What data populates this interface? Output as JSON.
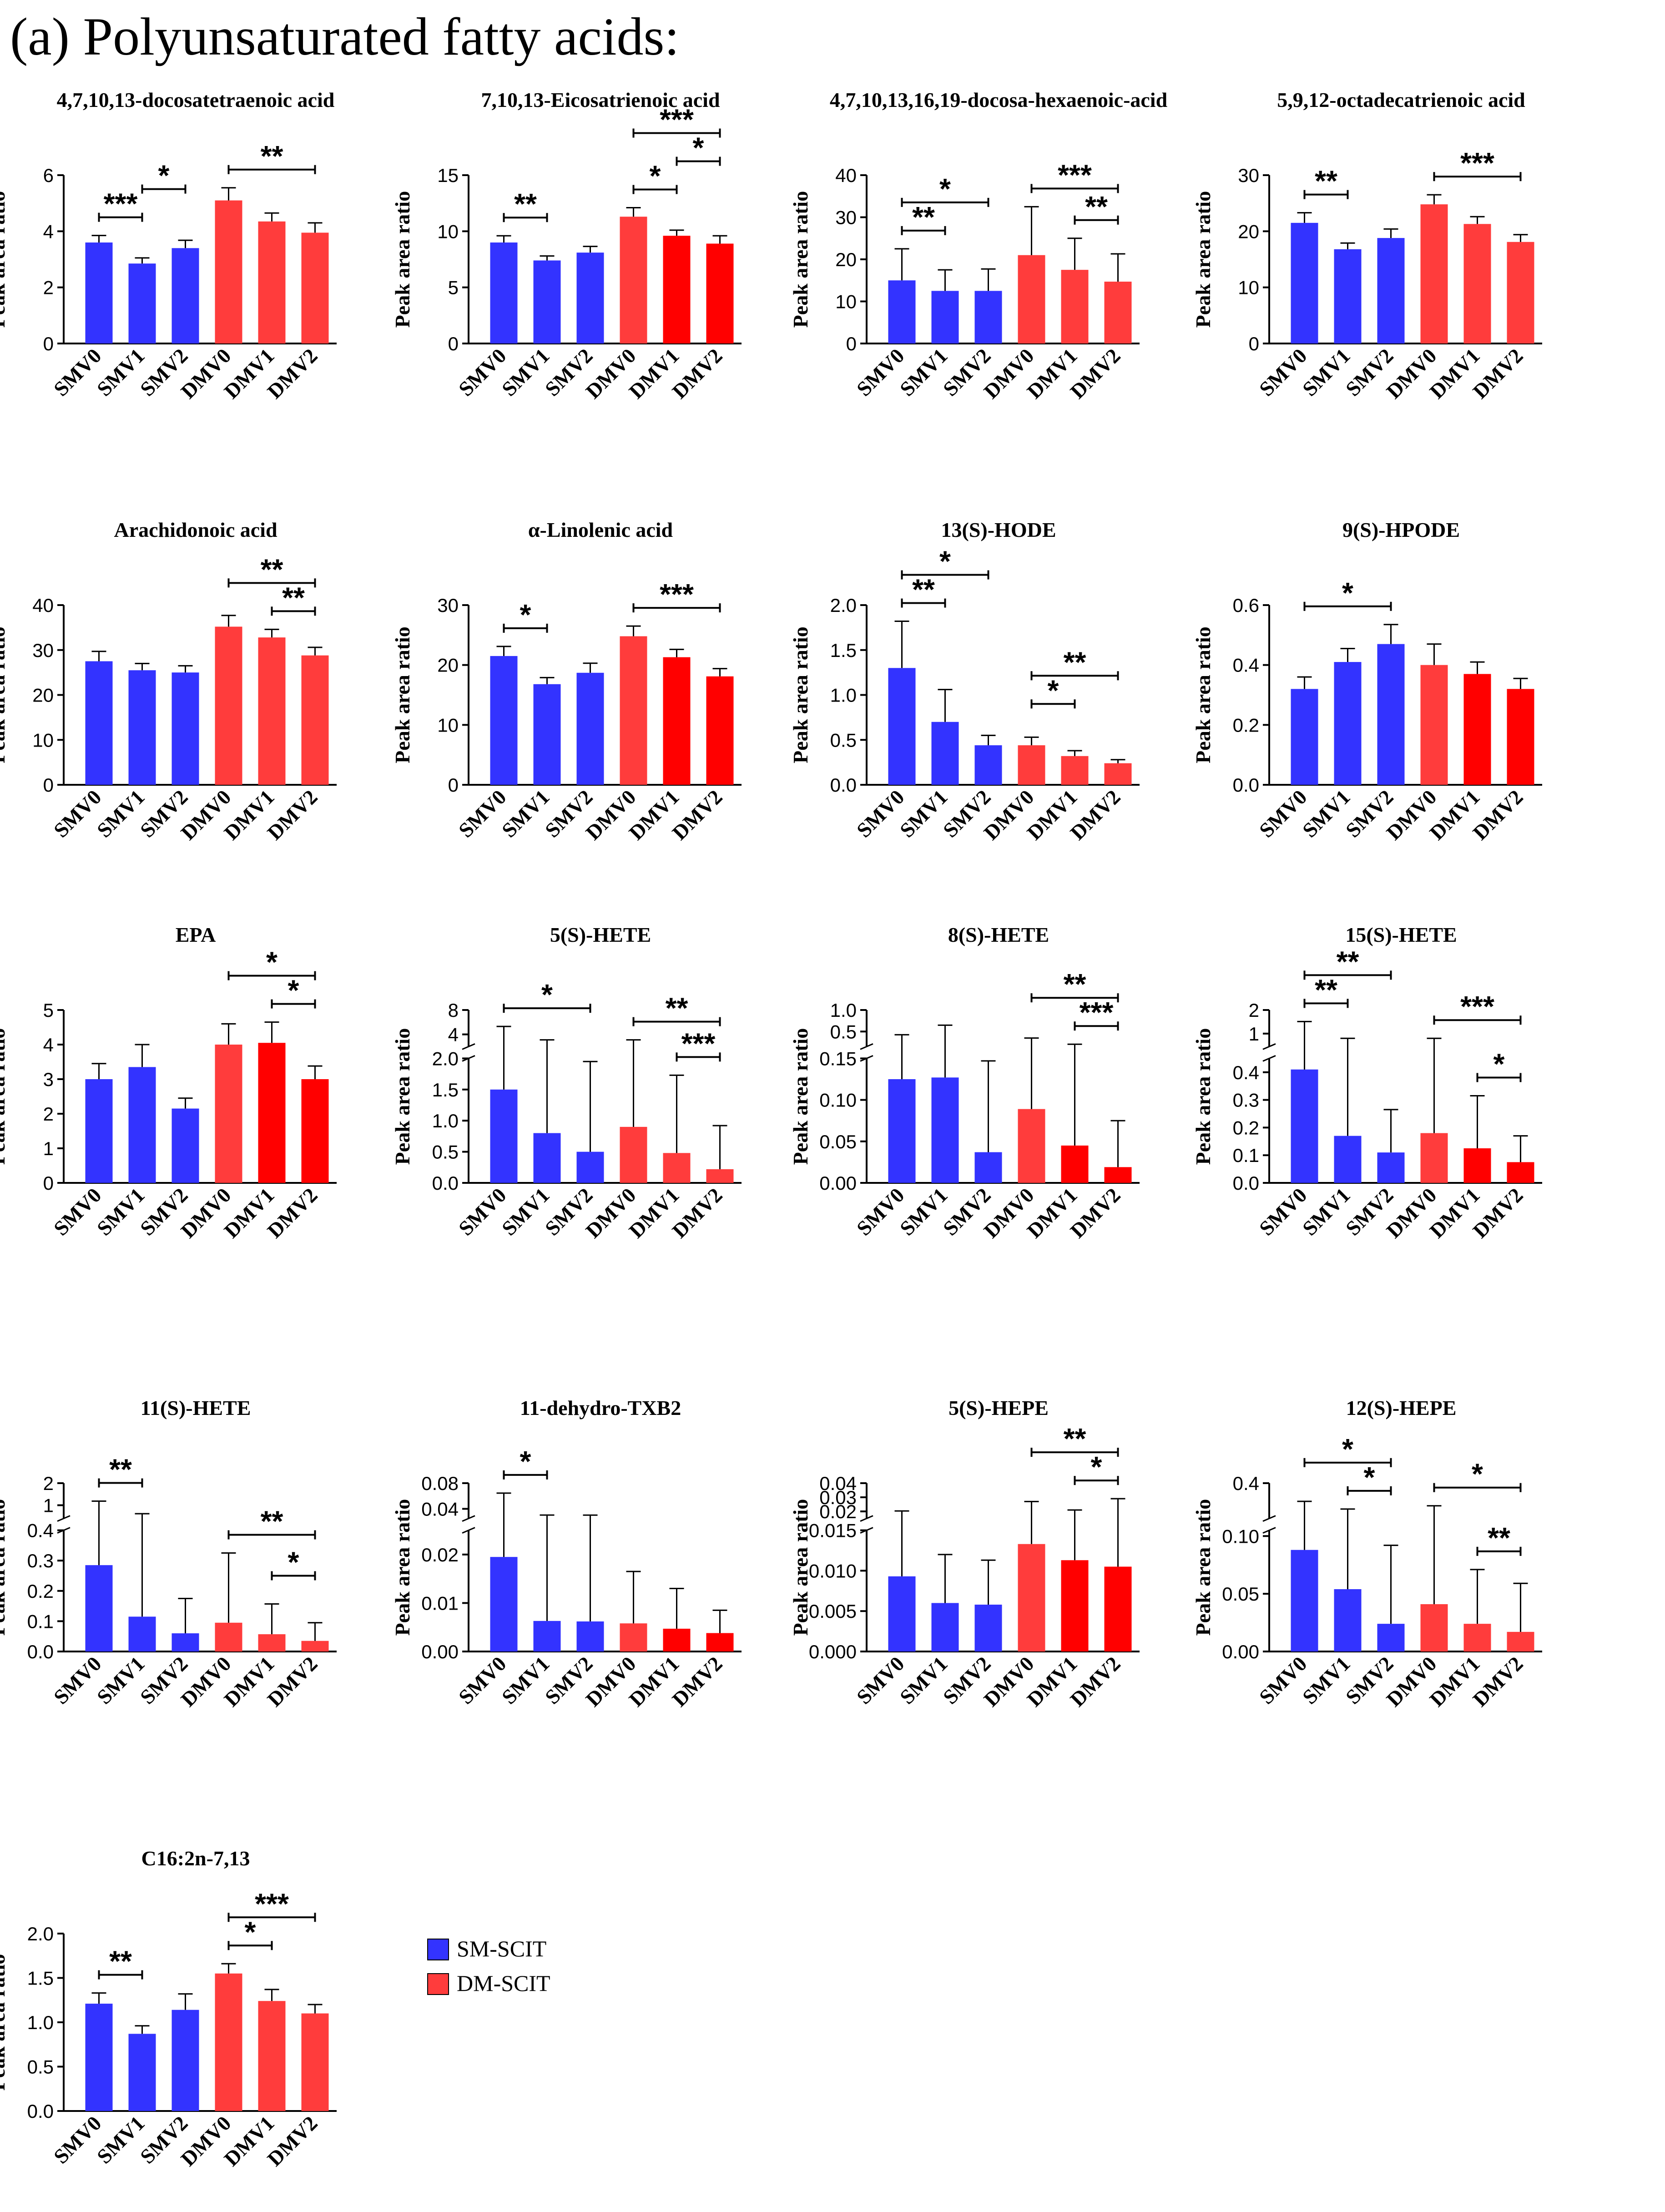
{
  "heading": "(a) Polyunsaturated fatty acids:",
  "legend": [
    {
      "label": "SM-SCIT",
      "color": "#3333ff"
    },
    {
      "label": "DM-SCIT",
      "color": "#ff3c3c"
    }
  ],
  "colors": {
    "sm": "#3333ff",
    "dm": "#ff3c3c",
    "dm_dark": "#ff0000"
  },
  "chart_data": [
    {
      "type": "bar",
      "title": "4,7,10,13-docosatetraenoic acid",
      "ylabel": "Peak area ratio",
      "categories": [
        "SMV0",
        "SMV1",
        "SMV2",
        "DMV0",
        "DMV1",
        "DMV2"
      ],
      "values": [
        3.6,
        2.85,
        3.4,
        5.1,
        4.35,
        3.95
      ],
      "errors": [
        0.25,
        0.2,
        0.28,
        0.45,
        0.3,
        0.35
      ],
      "ylim": [
        0,
        6
      ],
      "yticks": [
        0,
        2,
        4,
        6
      ],
      "sig": [
        {
          "from": 0,
          "to": 1,
          "label": "***"
        },
        {
          "from": 1,
          "to": 2,
          "label": "*"
        },
        {
          "from": 3,
          "to": 5,
          "label": "**"
        }
      ]
    },
    {
      "type": "bar",
      "title": "7,10,13-Eicosatrienoic acid",
      "ylabel": "Peak area ratio",
      "categories": [
        "SMV0",
        "SMV1",
        "SMV2",
        "DMV0",
        "DMV1",
        "DMV2"
      ],
      "values": [
        9.0,
        7.4,
        8.1,
        11.3,
        9.6,
        8.9
      ],
      "errors": [
        0.6,
        0.4,
        0.55,
        0.8,
        0.5,
        0.7
      ],
      "ylim": [
        0,
        15
      ],
      "yticks": [
        0,
        5,
        10,
        15
      ],
      "sig": [
        {
          "from": 0,
          "to": 1,
          "label": "**"
        },
        {
          "from": 3,
          "to": 4,
          "label": "*"
        },
        {
          "from": 4,
          "to": 5,
          "label": "*"
        },
        {
          "from": 3,
          "to": 5,
          "label": "***"
        }
      ]
    },
    {
      "type": "bar",
      "title": "4,7,10,13,16,19-docosa-hexaenoic-acid",
      "ylabel": "Peak area ratio",
      "categories": [
        "SMV0",
        "SMV1",
        "SMV2",
        "DMV0",
        "DMV1",
        "DMV2"
      ],
      "values": [
        15,
        12.5,
        12.5,
        21,
        17.5,
        14.7
      ],
      "errors": [
        7.5,
        5,
        5.2,
        11.5,
        7.5,
        6.6
      ],
      "ylim": [
        0,
        40
      ],
      "yticks": [
        0,
        10,
        20,
        30,
        40
      ],
      "sig": [
        {
          "from": 0,
          "to": 1,
          "label": "**"
        },
        {
          "from": 0,
          "to": 2,
          "label": "*"
        },
        {
          "from": 4,
          "to": 5,
          "label": "**"
        },
        {
          "from": 3,
          "to": 5,
          "label": "***"
        }
      ]
    },
    {
      "type": "bar",
      "title": "5,9,12-octadecatrienoic acid",
      "ylabel": "Peak area ratio",
      "categories": [
        "SMV0",
        "SMV1",
        "SMV2",
        "DMV0",
        "DMV1",
        "DMV2"
      ],
      "values": [
        21.5,
        16.8,
        18.8,
        24.8,
        21.3,
        18.1
      ],
      "errors": [
        1.8,
        1.1,
        1.6,
        1.7,
        1.3,
        1.3
      ],
      "ylim": [
        0,
        30
      ],
      "yticks": [
        0,
        10,
        20,
        30
      ],
      "sig": [
        {
          "from": 0,
          "to": 1,
          "label": "**"
        },
        {
          "from": 3,
          "to": 5,
          "label": "***"
        }
      ]
    },
    {
      "type": "bar",
      "title": "Arachidonoic acid",
      "ylabel": "Peak area ratio",
      "categories": [
        "SMV0",
        "SMV1",
        "SMV2",
        "DMV0",
        "DMV1",
        "DMV2"
      ],
      "values": [
        27.5,
        25.5,
        25.0,
        35.2,
        32.8,
        28.8
      ],
      "errors": [
        2.2,
        1.5,
        1.5,
        2.5,
        1.8,
        1.8
      ],
      "ylim": [
        0,
        40
      ],
      "yticks": [
        0,
        10,
        20,
        30,
        40
      ],
      "sig": [
        {
          "from": 4,
          "to": 5,
          "label": "**"
        },
        {
          "from": 3,
          "to": 5,
          "label": "**"
        }
      ]
    },
    {
      "type": "bar",
      "title": "α-Linolenic acid",
      "ylabel": "Peak area ratio",
      "categories": [
        "SMV0",
        "SMV1",
        "SMV2",
        "DMV0",
        "DMV1",
        "DMV2"
      ],
      "values": [
        21.5,
        16.8,
        18.7,
        24.8,
        21.3,
        18.1
      ],
      "errors": [
        1.6,
        1.1,
        1.6,
        1.7,
        1.3,
        1.3
      ],
      "ylim": [
        0,
        30
      ],
      "yticks": [
        0,
        10,
        20,
        30
      ],
      "sig": [
        {
          "from": 0,
          "to": 1,
          "label": "*"
        },
        {
          "from": 3,
          "to": 5,
          "label": "***"
        }
      ]
    },
    {
      "type": "bar",
      "title": "13(S)-HODE",
      "ylabel": "Peak area ratio",
      "categories": [
        "SMV0",
        "SMV1",
        "SMV2",
        "DMV0",
        "DMV1",
        "DMV2"
      ],
      "values": [
        1.3,
        0.7,
        0.44,
        0.44,
        0.32,
        0.24
      ],
      "errors": [
        0.52,
        0.36,
        0.11,
        0.09,
        0.06,
        0.04
      ],
      "ylim": [
        0,
        2.0
      ],
      "yticks": [
        "0.0",
        "0.5",
        "1.0",
        "1.5",
        "2.0"
      ],
      "sig": [
        {
          "from": 0,
          "to": 1,
          "label": "**"
        },
        {
          "from": 0,
          "to": 2,
          "label": "*"
        },
        {
          "from": 3,
          "to": 4,
          "label": "*"
        },
        {
          "from": 3,
          "to": 5,
          "label": "**"
        }
      ]
    },
    {
      "type": "bar",
      "title": "9(S)-HPODE",
      "ylabel": "Peak area ratio",
      "categories": [
        "SMV0",
        "SMV1",
        "SMV2",
        "DMV0",
        "DMV1",
        "DMV2"
      ],
      "values": [
        0.32,
        0.41,
        0.47,
        0.4,
        0.37,
        0.32
      ],
      "errors": [
        0.04,
        0.045,
        0.065,
        0.07,
        0.04,
        0.035
      ],
      "ylim": [
        0,
        0.6
      ],
      "yticks": [
        "0.0",
        "0.2",
        "0.4",
        "0.6"
      ],
      "sig": [
        {
          "from": 0,
          "to": 2,
          "label": "*"
        }
      ]
    },
    {
      "type": "bar",
      "title": "EPA",
      "ylabel": "Peak area ratio",
      "categories": [
        "SMV0",
        "SMV1",
        "SMV2",
        "DMV0",
        "DMV1",
        "DMV2"
      ],
      "values": [
        3.0,
        3.35,
        2.15,
        4.0,
        4.05,
        3.0
      ],
      "errors": [
        0.45,
        0.65,
        0.3,
        0.6,
        0.6,
        0.38
      ],
      "ylim": [
        0,
        5
      ],
      "yticks": [
        0,
        1,
        2,
        3,
        4,
        5
      ],
      "sig": [
        {
          "from": 4,
          "to": 5,
          "label": "*"
        },
        {
          "from": 3,
          "to": 5,
          "label": "*"
        }
      ]
    },
    {
      "type": "bar",
      "title": "5(S)-HETE",
      "ylabel": "Peak area ratio",
      "categories": [
        "SMV0",
        "SMV1",
        "SMV2",
        "DMV0",
        "DMV1",
        "DMV2"
      ],
      "values": [
        1.5,
        0.8,
        0.5,
        0.9,
        0.48,
        0.22
      ],
      "errors": [
        3.8,
        2.3,
        1.45,
        2.2,
        1.25,
        0.7
      ],
      "ylim": [
        0,
        2.0
      ],
      "ylim_upper": [
        2,
        8
      ],
      "yticks": [
        "0.0",
        "0.5",
        "1.0",
        "1.5",
        "2.0"
      ],
      "yticks_upper": [
        4,
        8
      ],
      "sig": [
        {
          "from": 0,
          "to": 2,
          "label": "*"
        },
        {
          "from": 4,
          "to": 5,
          "label": "***"
        },
        {
          "from": 3,
          "to": 5,
          "label": "**"
        }
      ]
    },
    {
      "type": "bar",
      "title": "8(S)-HETE",
      "ylabel": "Peak area ratio",
      "categories": [
        "SMV0",
        "SMV1",
        "SMV2",
        "DMV0",
        "DMV1",
        "DMV2"
      ],
      "values": [
        0.125,
        0.127,
        0.037,
        0.089,
        0.045,
        0.019
      ],
      "errors": [
        0.3,
        0.52,
        0.11,
        0.26,
        0.16,
        0.056
      ],
      "ylim": [
        0,
        0.15
      ],
      "ylim_upper": [
        0.15,
        1.0
      ],
      "yticks": [
        "0.00",
        "0.05",
        "0.10",
        "0.15"
      ],
      "yticks_upper": [
        "0.5",
        "1.0"
      ],
      "sig": [
        {
          "from": 4,
          "to": 5,
          "label": "***"
        },
        {
          "from": 3,
          "to": 5,
          "label": "**"
        }
      ]
    },
    {
      "type": "bar",
      "title": "15(S)-HETE",
      "ylabel": "Peak area ratio",
      "categories": [
        "SMV0",
        "SMV1",
        "SMV2",
        "DMV0",
        "DMV1",
        "DMV2"
      ],
      "values": [
        0.41,
        0.17,
        0.11,
        0.18,
        0.125,
        0.075
      ],
      "errors": [
        1.1,
        0.63,
        0.155,
        0.62,
        0.19,
        0.095
      ],
      "ylim": [
        0,
        0.45
      ],
      "ylim_upper": [
        0.45,
        2
      ],
      "yticks": [
        "0.0",
        "0.1",
        "0.2",
        "0.3",
        "0.4"
      ],
      "yticks_upper": [
        1,
        2
      ],
      "sig": [
        {
          "from": 0,
          "to": 1,
          "label": "**"
        },
        {
          "from": 0,
          "to": 2,
          "label": "**"
        },
        {
          "from": 4,
          "to": 5,
          "label": "*"
        },
        {
          "from": 3,
          "to": 5,
          "label": "***"
        }
      ]
    },
    {
      "type": "bar",
      "title": "11(S)-HETE",
      "ylabel": "Peak area ratio",
      "categories": [
        "SMV0",
        "SMV1",
        "SMV2",
        "DMV0",
        "DMV1",
        "DMV2"
      ],
      "values": [
        0.285,
        0.115,
        0.06,
        0.095,
        0.057,
        0.035
      ],
      "errors": [
        0.9,
        0.5,
        0.115,
        0.23,
        0.1,
        0.06
      ],
      "ylim": [
        0,
        0.4
      ],
      "ylim_upper": [
        0.4,
        2
      ],
      "yticks": [
        "0.0",
        "0.1",
        "0.2",
        "0.3",
        "0.4"
      ],
      "yticks_upper": [
        1,
        2
      ],
      "sig": [
        {
          "from": 0,
          "to": 1,
          "label": "**"
        },
        {
          "from": 4,
          "to": 5,
          "label": "*"
        },
        {
          "from": 3,
          "to": 5,
          "label": "**"
        }
      ]
    },
    {
      "type": "bar",
      "title": "11-dehydro-TXB2",
      "ylabel": "Peak area ratio",
      "categories": [
        "SMV0",
        "SMV1",
        "SMV2",
        "DMV0",
        "DMV1",
        "DMV2"
      ],
      "values": [
        0.0195,
        0.0063,
        0.0062,
        0.0058,
        0.0047,
        0.0038
      ],
      "errors": [
        0.045,
        0.024,
        0.024,
        0.0107,
        0.0083,
        0.0047
      ],
      "ylim": [
        0,
        0.025
      ],
      "ylim_upper": [
        0.025,
        0.08
      ],
      "yticks": [
        "0.00",
        "0.01",
        "0.02"
      ],
      "yticks_upper": [
        "0.04",
        "0.08"
      ],
      "sig": [
        {
          "from": 0,
          "to": 1,
          "label": "*"
        }
      ]
    },
    {
      "type": "bar",
      "title": "5(S)-HEPE",
      "ylabel": "Peak area ratio",
      "categories": [
        "SMV0",
        "SMV1",
        "SMV2",
        "DMV0",
        "DMV1",
        "DMV2"
      ],
      "values": [
        0.0093,
        0.006,
        0.0058,
        0.0133,
        0.0113,
        0.0105
      ],
      "errors": [
        0.011,
        0.006,
        0.0055,
        0.0137,
        0.0097,
        0.0185
      ],
      "ylim": [
        0,
        0.015
      ],
      "ylim_upper": [
        0.015,
        0.04
      ],
      "yticks": [
        "0.000",
        "0.005",
        "0.010",
        "0.015"
      ],
      "yticks_upper": [
        "0.02",
        "0.03",
        "0.04"
      ],
      "sig": [
        {
          "from": 4,
          "to": 5,
          "label": "*"
        },
        {
          "from": 3,
          "to": 5,
          "label": "**"
        }
      ]
    },
    {
      "type": "bar",
      "title": "12(S)-HEPE",
      "ylabel": "Peak area ratio",
      "categories": [
        "SMV0",
        "SMV1",
        "SMV2",
        "DMV0",
        "DMV1",
        "DMV2"
      ],
      "values": [
        0.088,
        0.054,
        0.024,
        0.041,
        0.024,
        0.017
      ],
      "errors": [
        0.16,
        0.13,
        0.068,
        0.17,
        0.047,
        0.042
      ],
      "ylim": [
        0,
        0.105
      ],
      "ylim_upper": [
        0.105,
        0.4
      ],
      "yticks": [
        "0.00",
        "0.05",
        "0.10"
      ],
      "yticks_upper": [
        "0.4"
      ],
      "sig": [
        {
          "from": 0,
          "to": 2,
          "label": "*"
        },
        {
          "from": 1,
          "to": 2,
          "label": "*"
        },
        {
          "from": 4,
          "to": 5,
          "label": "**"
        },
        {
          "from": 3,
          "to": 5,
          "label": "*"
        }
      ]
    },
    {
      "type": "bar",
      "title": "C16:2n-7,13",
      "ylabel": "Peak area ratio",
      "categories": [
        "SMV0",
        "SMV1",
        "SMV2",
        "DMV0",
        "DMV1",
        "DMV2"
      ],
      "values": [
        1.21,
        0.87,
        1.14,
        1.55,
        1.24,
        1.1
      ],
      "errors": [
        0.12,
        0.09,
        0.18,
        0.11,
        0.13,
        0.1
      ],
      "ylim": [
        0,
        2.0
      ],
      "yticks": [
        "0.0",
        "0.5",
        "1.0",
        "1.5",
        "2.0"
      ],
      "sig": [
        {
          "from": 0,
          "to": 1,
          "label": "**"
        },
        {
          "from": 3,
          "to": 4,
          "label": "*"
        },
        {
          "from": 3,
          "to": 5,
          "label": "***"
        }
      ]
    }
  ]
}
